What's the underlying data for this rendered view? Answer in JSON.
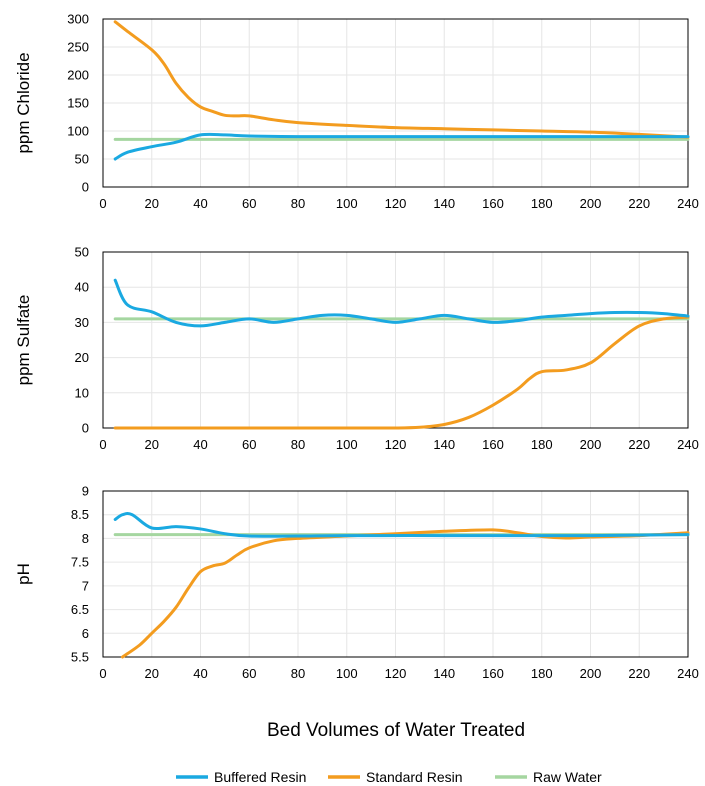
{
  "chart_data": [
    {
      "type": "line",
      "ylabel": "ppm Chloride",
      "xlim": [
        0,
        240
      ],
      "ylim": [
        0,
        300
      ],
      "xticks": [
        0,
        20,
        40,
        60,
        80,
        100,
        120,
        140,
        160,
        180,
        200,
        220,
        240
      ],
      "xtick_labels": [
        "0",
        "20",
        "40",
        "60",
        "80",
        "100",
        "120",
        "140",
        "160",
        "180",
        "200",
        "220",
        "240"
      ],
      "yticks": [
        0,
        50,
        100,
        150,
        200,
        250,
        300
      ],
      "ytick_labels": [
        "0",
        "50",
        "100",
        "150",
        "200",
        "250",
        "300"
      ],
      "grid": true,
      "series": [
        {
          "name": "Buffered Resin",
          "x": [
            5,
            10,
            20,
            30,
            40,
            50,
            60,
            80,
            100,
            120,
            140,
            160,
            180,
            200,
            220,
            240
          ],
          "y": [
            50,
            62,
            72,
            80,
            93,
            93,
            91,
            90,
            90,
            90,
            90,
            90,
            90,
            90,
            90,
            90
          ]
        },
        {
          "name": "Standard Resin",
          "x": [
            5,
            10,
            20,
            25,
            30,
            35,
            40,
            45,
            50,
            55,
            60,
            70,
            80,
            100,
            120,
            140,
            160,
            180,
            200,
            220,
            240
          ],
          "y": [
            295,
            278,
            245,
            220,
            185,
            160,
            143,
            135,
            128,
            127,
            127,
            120,
            115,
            110,
            106,
            104,
            102,
            100,
            98,
            94,
            89
          ]
        },
        {
          "name": "Raw Water",
          "x": [
            5,
            240
          ],
          "y": [
            85,
            85
          ]
        }
      ]
    },
    {
      "type": "line",
      "ylabel": "ppm Sulfate",
      "xlim": [
        0,
        240
      ],
      "ylim": [
        0,
        50
      ],
      "xticks": [
        0,
        20,
        40,
        60,
        80,
        100,
        120,
        140,
        160,
        180,
        200,
        220,
        240
      ],
      "xtick_labels": [
        "0",
        "20",
        "40",
        "60",
        "80",
        "100",
        "120",
        "140",
        "160",
        "180",
        "200",
        "220",
        "240"
      ],
      "yticks": [
        0,
        10,
        20,
        30,
        40,
        50
      ],
      "ytick_labels": [
        "0",
        "10",
        "20",
        "30",
        "40",
        "50"
      ],
      "grid": true,
      "series": [
        {
          "name": "Buffered Resin",
          "x": [
            5,
            10,
            20,
            30,
            40,
            50,
            60,
            70,
            80,
            90,
            100,
            110,
            120,
            130,
            140,
            150,
            160,
            170,
            180,
            190,
            200,
            210,
            220,
            230,
            240
          ],
          "y": [
            42,
            35,
            33,
            30,
            29,
            30,
            31,
            30,
            31,
            32,
            32,
            31,
            30,
            31,
            32,
            31,
            30,
            30.5,
            31.5,
            32,
            32.5,
            32.8,
            32.8,
            32.5,
            31.8
          ]
        },
        {
          "name": "Standard Resin",
          "x": [
            5,
            20,
            40,
            60,
            80,
            100,
            120,
            130,
            140,
            150,
            160,
            170,
            175,
            180,
            190,
            200,
            210,
            220,
            230,
            240
          ],
          "y": [
            0,
            0,
            0,
            0,
            0,
            0,
            0,
            0.2,
            1,
            3,
            6.5,
            11,
            14,
            16,
            16.5,
            18.5,
            24,
            29,
            31,
            31.5
          ]
        },
        {
          "name": "Raw Water",
          "x": [
            5,
            240
          ],
          "y": [
            31,
            31
          ]
        }
      ]
    },
    {
      "type": "line",
      "ylabel": "pH",
      "xlim": [
        0,
        240
      ],
      "ylim": [
        5.5,
        9
      ],
      "xticks": [
        0,
        20,
        40,
        60,
        80,
        100,
        120,
        140,
        160,
        180,
        200,
        220,
        240
      ],
      "xtick_labels": [
        "0",
        "20",
        "40",
        "60",
        "80",
        "100",
        "120",
        "140",
        "160",
        "180",
        "200",
        "220",
        "240"
      ],
      "yticks": [
        5.5,
        6,
        6.5,
        7,
        7.5,
        8,
        8.5,
        9
      ],
      "ytick_labels": [
        "5.5",
        "6",
        "6.5",
        "7",
        "7.5",
        "8",
        "8.5",
        "9"
      ],
      "grid": true,
      "series": [
        {
          "name": "Buffered Resin",
          "x": [
            5,
            8,
            12,
            20,
            30,
            40,
            50,
            60,
            80,
            100,
            140,
            180,
            200,
            220,
            240
          ],
          "y": [
            8.4,
            8.5,
            8.5,
            8.22,
            8.25,
            8.2,
            8.1,
            8.05,
            8.05,
            8.06,
            8.06,
            8.06,
            8.06,
            8.07,
            8.08
          ]
        },
        {
          "name": "Standard Resin",
          "x": [
            8,
            15,
            20,
            25,
            30,
            35,
            40,
            45,
            50,
            55,
            60,
            70,
            80,
            100,
            120,
            140,
            160,
            170,
            180,
            190,
            200,
            220,
            240
          ],
          "y": [
            5.5,
            5.75,
            6.0,
            6.25,
            6.55,
            6.95,
            7.3,
            7.42,
            7.48,
            7.65,
            7.8,
            7.95,
            8.0,
            8.05,
            8.1,
            8.15,
            8.18,
            8.12,
            8.04,
            8.01,
            8.03,
            8.06,
            8.12
          ]
        },
        {
          "name": "Raw Water",
          "x": [
            5,
            240
          ],
          "y": [
            8.08,
            8.08
          ]
        }
      ]
    }
  ],
  "xlabel": "Bed Volumes of Water Treated",
  "legend": {
    "placement": "bottom",
    "items": [
      {
        "name": "Buffered Resin",
        "color": "#1aa9e1"
      },
      {
        "name": "Standard Resin",
        "color": "#f39c1f"
      },
      {
        "name": "Raw Water",
        "color": "#a5d6a0"
      }
    ]
  },
  "colors": {
    "Buffered Resin": "#1aa9e1",
    "Standard Resin": "#f39c1f",
    "Raw Water": "#a5d6a0",
    "grid": "#e6e6e6",
    "axis": "#000000"
  }
}
